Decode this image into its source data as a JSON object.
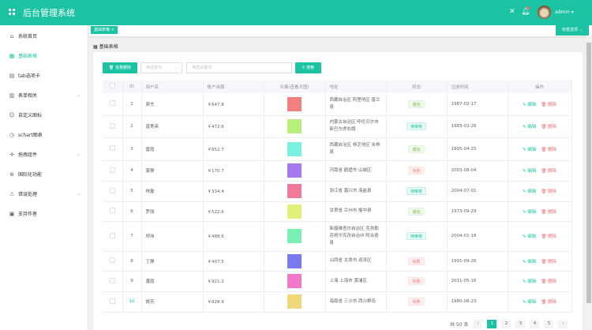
{
  "header": {
    "title": "后台管理系统",
    "user": "admin"
  },
  "sidebar": {
    "items": [
      {
        "label": "系统首页",
        "icon": "⌂"
      },
      {
        "label": "基础表格",
        "icon": "▦",
        "active": true
      },
      {
        "label": "tab选项卡",
        "icon": "▤"
      },
      {
        "label": "表单相关",
        "icon": "▥",
        "chev": true
      },
      {
        "label": "自定义图标",
        "icon": "☺"
      },
      {
        "label": "schart图表",
        "icon": "◷"
      },
      {
        "label": "拖拽组件",
        "icon": "✛",
        "chev": true
      },
      {
        "label": "国际化功能",
        "icon": "⊛"
      },
      {
        "label": "错误处理",
        "icon": "⚠",
        "chev": true
      },
      {
        "label": "支持作者",
        "icon": "▣"
      }
    ]
  },
  "tags": {
    "active": "基础表格",
    "options": "标签选项"
  },
  "breadcrumb": "基础表格",
  "toolbar": {
    "batch_delete": "批量删除",
    "province_placeholder": "筛选省份",
    "keyword_placeholder": "筛选关键词",
    "search": "搜索"
  },
  "table": {
    "headers": [
      "",
      "ID",
      "用户名",
      "账户余额",
      "头像(查看大图)",
      "地址",
      "状态",
      "注册时间",
      "操作"
    ],
    "edit": "编辑",
    "delete": "删除",
    "rows": [
      {
        "id": "1",
        "name": "廖杰",
        "balance": "￥647.8",
        "avatar": "#f08080",
        "address": "西藏自治区 阿里地区 普兰县",
        "status": "成功",
        "date": "1987-02-17"
      },
      {
        "id": "2",
        "name": "曾秀英",
        "balance": "￥472.6",
        "avatar": "#b5f07a",
        "address": "内蒙古自治区 呼伦贝尔市 新巴尔虎右旗",
        "status": "待审核",
        "date": "1983-03-26"
      },
      {
        "id": "3",
        "name": "雷霞",
        "balance": "￥652.7",
        "avatar": "#7af0e0",
        "address": "西藏自治区 林芝地区 米林县",
        "status": "成功",
        "date": "1995-04-25"
      },
      {
        "id": "4",
        "name": "姜静",
        "balance": "￥170.7",
        "avatar": "#a37af0",
        "address": "河南省 鹤壁市 山城区",
        "status": "失败",
        "date": "2003-08-04"
      },
      {
        "id": "5",
        "name": "林磊",
        "balance": "￥334.4",
        "avatar": "#f07a9a",
        "address": "浙江省 嘉兴市 海盐县",
        "status": "待审核",
        "date": "2004-07-01"
      },
      {
        "id": "6",
        "name": "罗丽",
        "balance": "￥522.6",
        "avatar": "#e0f07a",
        "address": "甘肃省 兰州市 榆中县",
        "status": "成功",
        "date": "1973-09-29"
      },
      {
        "id": "7",
        "name": "郑伟",
        "balance": "￥488.6",
        "avatar": "#7af0b5",
        "address": "新疆维吾尔自治区 克孜勒苏柯尔克孜自治州 阿合奇县",
        "status": "待审核",
        "date": "2004-01-18"
      },
      {
        "id": "8",
        "name": "丁静",
        "balance": "￥407.5",
        "avatar": "#7a7af0",
        "address": "山西省 太原市 迎泽区",
        "status": "失败",
        "date": "1991-09-26"
      },
      {
        "id": "9",
        "name": "潘霞",
        "balance": "￥921.2",
        "avatar": "#f07ac8",
        "address": "上海 上海市 黄浦区",
        "status": "失败",
        "date": "2011-05-16"
      },
      {
        "id": "10",
        "name": "姚芳",
        "balance": "￥828.9",
        "avatar": "#f0d87a",
        "address": "海南省 三沙市 西沙群岛",
        "status": "失败",
        "date": "1980-06-23"
      }
    ]
  },
  "pagination": {
    "total": "共 50 条",
    "pages": [
      "1",
      "2",
      "3",
      "4",
      "5"
    ],
    "current": "1",
    "prev": "‹",
    "next": "›"
  },
  "colors": {
    "brand": "#1bc3a3"
  }
}
